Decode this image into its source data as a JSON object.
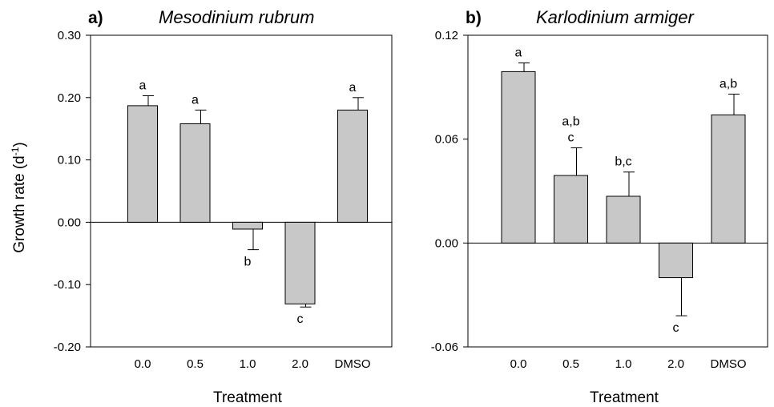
{
  "chart_data": [
    {
      "type": "bar",
      "panel_label": "a)",
      "title": "Mesodinium rubrum",
      "xlabel": "Treatment",
      "ylabel": "Growth rate (d",
      "ylabel_superscript": "-1",
      "ylabel_close": ")",
      "ylim": [
        -0.2,
        0.3
      ],
      "yticks": [
        -0.2,
        -0.1,
        0.0,
        0.1,
        0.2,
        0.3
      ],
      "ytick_labels": [
        "-0.20",
        "-0.10",
        "0.00",
        "0.10",
        "0.20",
        "0.30"
      ],
      "categories": [
        "0.0",
        "0.5",
        "1.0",
        "2.0",
        "DMSO"
      ],
      "values": [
        0.187,
        0.158,
        -0.011,
        -0.131,
        0.18
      ],
      "errors": [
        0.016,
        0.022,
        0.033,
        0.005,
        0.02
      ],
      "letters": [
        "a",
        "a",
        "b",
        "c",
        "a"
      ],
      "bar_color": "#c8c8c8"
    },
    {
      "type": "bar",
      "panel_label": "b)",
      "title": "Karlodinium armiger",
      "xlabel": "Treatment",
      "ylabel": "",
      "ylim": [
        -0.06,
        0.12
      ],
      "yticks": [
        -0.06,
        0.0,
        0.06,
        0.12
      ],
      "ytick_labels": [
        "-0.06",
        "0.00",
        "0.06",
        "0.12"
      ],
      "categories": [
        "0.0",
        "0.5",
        "1.0",
        "2.0",
        "DMSO"
      ],
      "values": [
        0.099,
        0.039,
        0.027,
        -0.02,
        0.074
      ],
      "errors": [
        0.005,
        0.016,
        0.014,
        0.022,
        0.012
      ],
      "letters": [
        "a",
        "a,b\nc",
        "b,c",
        "c",
        "a,b"
      ],
      "bar_color": "#c8c8c8"
    }
  ]
}
